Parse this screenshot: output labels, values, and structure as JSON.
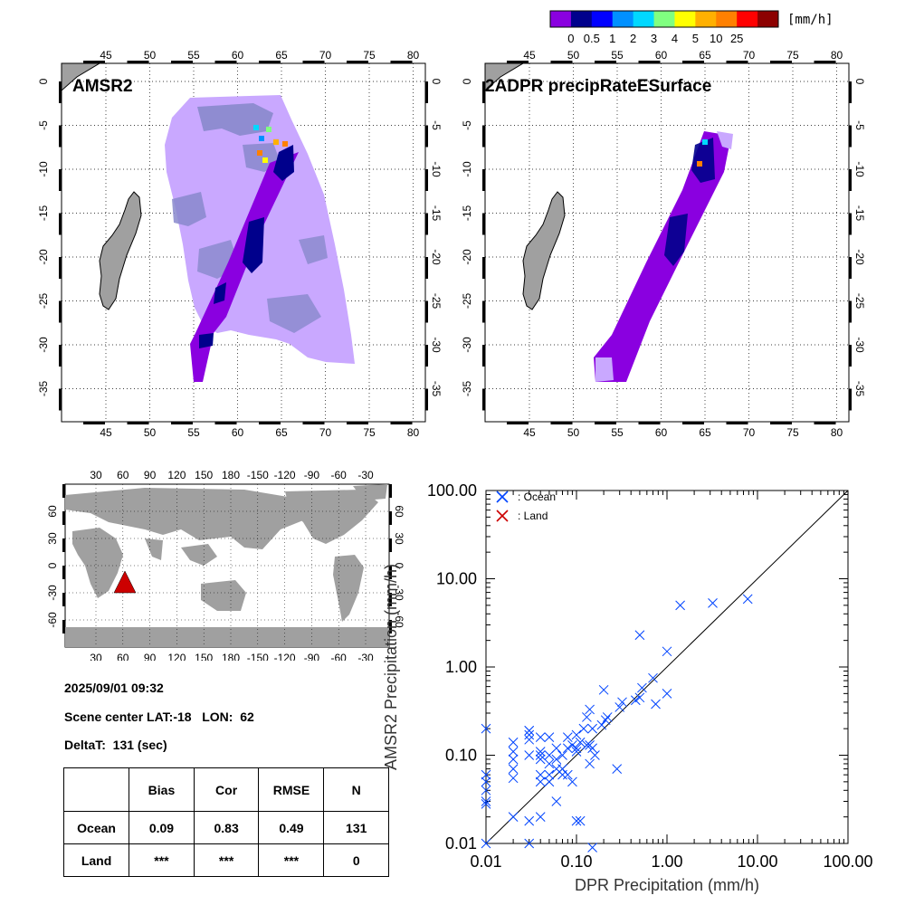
{
  "colorbar": {
    "unit": "[mm/h]",
    "colors": [
      "#8a00e0",
      "#00008c",
      "#0000ff",
      "#0090ff",
      "#00d8ff",
      "#80ff80",
      "#ffff00",
      "#ffb000",
      "#ff8000",
      "#ff0000",
      "#8c0000"
    ],
    "labels": [
      "0",
      "0.5",
      "1",
      "2",
      "3",
      "4",
      "5",
      "10",
      "25"
    ]
  },
  "maps": [
    {
      "title": "AMSR2",
      "lon_labels": [
        "45",
        "50",
        "55",
        "60",
        "65",
        "70",
        "75",
        "80"
      ],
      "lat_labels": [
        "0",
        "-5",
        "-10",
        "-15",
        "-20",
        "-25",
        "-30",
        "-35"
      ],
      "colors": {
        "light_precip": "#c9a8ff",
        "no_precip": "#8888cc",
        "swath": "#8a00e0",
        "heavy": "#00008c",
        "land": "#a0a0a0"
      }
    },
    {
      "title": "2ADPR precipRateESurface",
      "lon_labels": [
        "45",
        "50",
        "55",
        "60",
        "65",
        "70",
        "75",
        "80"
      ],
      "lat_labels": [
        "0",
        "-5",
        "-10",
        "-15",
        "-20",
        "-25",
        "-30",
        "-35"
      ],
      "colors": {
        "light_precip": "#c9a8ff",
        "swath": "#8a00e0",
        "heavy": "#00008c",
        "land": "#a0a0a0"
      }
    }
  ],
  "world_map": {
    "top_lon_labels": [
      "30",
      "60",
      "90",
      "120",
      "150",
      "180",
      "-150",
      "-120",
      "-90",
      "-60",
      "-30"
    ],
    "bottom_lon_labels": [
      "30",
      "60",
      "90",
      "120",
      "150",
      "180",
      "-150",
      "-120",
      "-90",
      "-60",
      "-30"
    ],
    "left_lat_labels": [
      "60",
      "30",
      "0",
      "-30",
      "-60"
    ],
    "right_lat_labels": [
      "60",
      "30",
      "0",
      "-30",
      "-60"
    ],
    "marker_color": "#cc0000",
    "land_color": "#a0a0a0"
  },
  "info": {
    "datetime": "2025/09/01 09:32",
    "scene_center": "Scene center LAT:-18   LON:  62",
    "deltat": "DeltaT:  131 (sec)"
  },
  "stats_table": {
    "headers": [
      "",
      "Bias",
      "Cor",
      "RMSE",
      "N"
    ],
    "rows": [
      [
        "Ocean",
        "0.09",
        "0.83",
        "0.49",
        "131"
      ],
      [
        "Land",
        "***",
        "***",
        "***",
        "0"
      ]
    ]
  },
  "chart_data": {
    "type": "scatter",
    "xlabel": "DPR Precipitation (mm/h)",
    "ylabel": "AMSR2 Precipitation (mm/h)",
    "xscale": "log",
    "yscale": "log",
    "xlim": [
      0.01,
      100
    ],
    "ylim": [
      0.01,
      100
    ],
    "tick_labels": [
      "0.01",
      "0.10",
      "1.00",
      "10.00",
      "100.00"
    ],
    "legend": {
      "placement": "top-left",
      "entries": [
        {
          "label": ": Ocean",
          "color": "#0044ff"
        },
        {
          "label": ": Land",
          "color": "#cc0000"
        }
      ]
    },
    "series": [
      {
        "name": "Ocean",
        "color": "#0044ff",
        "x": [
          0.01,
          0.01,
          0.01,
          0.01,
          0.01,
          0.01,
          0.01,
          0.02,
          0.02,
          0.02,
          0.02,
          0.02,
          0.03,
          0.03,
          0.03,
          0.03,
          0.03,
          0.03,
          0.04,
          0.04,
          0.04,
          0.04,
          0.04,
          0.04,
          0.05,
          0.05,
          0.05,
          0.05,
          0.05,
          0.06,
          0.06,
          0.06,
          0.06,
          0.07,
          0.07,
          0.07,
          0.08,
          0.08,
          0.08,
          0.09,
          0.09,
          0.1,
          0.1,
          0.1,
          0.11,
          0.11,
          0.12,
          0.13,
          0.13,
          0.14,
          0.14,
          0.14,
          0.15,
          0.15,
          0.16,
          0.19,
          0.2,
          0.21,
          0.22,
          0.28,
          0.3,
          0.32,
          0.45,
          0.5,
          0.5,
          0.53,
          0.7,
          0.75,
          1.0,
          1.0,
          1.4,
          3.2,
          7.8,
          0.03,
          0.02,
          0.1,
          0.04,
          0.15
        ],
        "y": [
          0.2,
          0.06,
          0.05,
          0.04,
          0.03,
          0.028,
          0.01,
          0.14,
          0.09,
          0.07,
          0.055,
          0.02,
          0.19,
          0.17,
          0.15,
          0.1,
          0.018,
          0.01,
          0.16,
          0.1,
          0.09,
          0.06,
          0.05,
          0.02,
          0.16,
          0.1,
          0.08,
          0.06,
          0.05,
          0.12,
          0.09,
          0.07,
          0.03,
          0.1,
          0.07,
          0.06,
          0.16,
          0.12,
          0.06,
          0.13,
          0.05,
          0.17,
          0.12,
          0.018,
          0.14,
          0.018,
          0.2,
          0.27,
          0.13,
          0.33,
          0.13,
          0.08,
          0.2,
          0.12,
          0.1,
          0.22,
          0.55,
          0.25,
          0.27,
          0.07,
          0.35,
          0.4,
          0.42,
          2.3,
          0.45,
          0.58,
          0.75,
          0.38,
          1.5,
          0.5,
          5.0,
          5.3,
          5.9,
          0.19,
          0.11,
          0.11,
          0.11,
          0.009
        ]
      },
      {
        "name": "Land",
        "color": "#cc0000",
        "x": [],
        "y": []
      }
    ]
  }
}
